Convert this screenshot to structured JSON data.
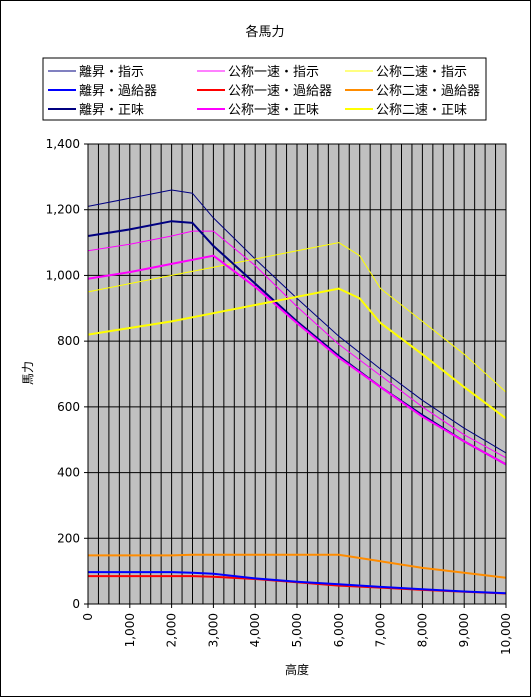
{
  "chart_data": {
    "type": "line",
    "title": "各馬力",
    "xlabel": "高度",
    "ylabel": "馬力",
    "xlim": [
      0,
      10000
    ],
    "ylim": [
      0,
      1400
    ],
    "x_ticks": [
      "0",
      "1,000",
      "2,000",
      "3,000",
      "4,000",
      "5,000",
      "6,000",
      "7,000",
      "8,000",
      "9,000",
      "10,000"
    ],
    "y_ticks": [
      "0",
      "200",
      "400",
      "600",
      "800",
      "1,000",
      "1,200",
      "1,400"
    ],
    "grid": true,
    "plot_background": "#c0c0c0",
    "legend_position": "top",
    "series": [
      {
        "name": "離昇・指示",
        "color": "#000080",
        "width": 1,
        "points": [
          [
            0,
            1210
          ],
          [
            1000,
            1235
          ],
          [
            2000,
            1260
          ],
          [
            2500,
            1250
          ],
          [
            3000,
            1175
          ],
          [
            4000,
            1050
          ],
          [
            5000,
            930
          ],
          [
            6000,
            815
          ],
          [
            7000,
            715
          ],
          [
            8000,
            620
          ],
          [
            9000,
            535
          ],
          [
            10000,
            460
          ]
        ]
      },
      {
        "name": "公称一速・指示",
        "color": "#ff00ff",
        "width": 1,
        "points": [
          [
            0,
            1075
          ],
          [
            1000,
            1095
          ],
          [
            2000,
            1120
          ],
          [
            2500,
            1135
          ],
          [
            3000,
            1135
          ],
          [
            4000,
            1030
          ],
          [
            5000,
            905
          ],
          [
            6000,
            790
          ],
          [
            7000,
            695
          ],
          [
            8000,
            600
          ],
          [
            9000,
            515
          ],
          [
            10000,
            445
          ]
        ]
      },
      {
        "name": "公称二速・指示",
        "color": "#ffff00",
        "width": 1,
        "points": [
          [
            0,
            950
          ],
          [
            1000,
            975
          ],
          [
            2000,
            1000
          ],
          [
            3000,
            1025
          ],
          [
            4000,
            1050
          ],
          [
            5000,
            1075
          ],
          [
            6000,
            1100
          ],
          [
            6500,
            1060
          ],
          [
            7000,
            960
          ],
          [
            8000,
            860
          ],
          [
            9000,
            760
          ],
          [
            10000,
            645
          ]
        ]
      },
      {
        "name": "離昇・過給器",
        "color": "#0000ff",
        "width": 2,
        "points": [
          [
            0,
            97
          ],
          [
            1000,
            97
          ],
          [
            2000,
            97
          ],
          [
            2500,
            95
          ],
          [
            3000,
            92
          ],
          [
            4000,
            78
          ],
          [
            5000,
            68
          ],
          [
            6000,
            60
          ],
          [
            7000,
            52
          ],
          [
            8000,
            45
          ],
          [
            9000,
            38
          ],
          [
            10000,
            33
          ]
        ]
      },
      {
        "name": "公称一速・過給器",
        "color": "#ff0000",
        "width": 2,
        "points": [
          [
            0,
            85
          ],
          [
            1000,
            85
          ],
          [
            2000,
            85
          ],
          [
            2500,
            85
          ],
          [
            3000,
            83
          ],
          [
            4000,
            76
          ],
          [
            5000,
            66
          ],
          [
            6000,
            56
          ],
          [
            7000,
            50
          ],
          [
            8000,
            43
          ],
          [
            9000,
            37
          ],
          [
            10000,
            32
          ]
        ]
      },
      {
        "name": "公称二速・過給器",
        "color": "#ff8c00",
        "width": 2,
        "points": [
          [
            0,
            148
          ],
          [
            1000,
            148
          ],
          [
            2000,
            148
          ],
          [
            2500,
            150
          ],
          [
            3000,
            150
          ],
          [
            4000,
            150
          ],
          [
            5000,
            150
          ],
          [
            6000,
            150
          ],
          [
            7000,
            130
          ],
          [
            8000,
            110
          ],
          [
            9000,
            95
          ],
          [
            10000,
            80
          ]
        ]
      },
      {
        "name": "離昇・正味",
        "color": "#000080",
        "width": 2,
        "points": [
          [
            0,
            1120
          ],
          [
            1000,
            1140
          ],
          [
            2000,
            1165
          ],
          [
            2500,
            1160
          ],
          [
            3000,
            1090
          ],
          [
            4000,
            975
          ],
          [
            5000,
            860
          ],
          [
            6000,
            755
          ],
          [
            7000,
            660
          ],
          [
            8000,
            575
          ],
          [
            9000,
            495
          ],
          [
            10000,
            425
          ]
        ]
      },
      {
        "name": "公称一速・正味",
        "color": "#ff00ff",
        "width": 2,
        "points": [
          [
            0,
            990
          ],
          [
            1000,
            1010
          ],
          [
            2000,
            1035
          ],
          [
            3000,
            1060
          ],
          [
            4000,
            965
          ],
          [
            5000,
            855
          ],
          [
            6000,
            750
          ],
          [
            7000,
            660
          ],
          [
            8000,
            570
          ],
          [
            9000,
            495
          ],
          [
            10000,
            425
          ]
        ]
      },
      {
        "name": "公称二速・正味",
        "color": "#ffff00",
        "width": 2,
        "points": [
          [
            0,
            820
          ],
          [
            1000,
            840
          ],
          [
            2000,
            860
          ],
          [
            3000,
            885
          ],
          [
            4000,
            910
          ],
          [
            5000,
            935
          ],
          [
            6000,
            960
          ],
          [
            6500,
            930
          ],
          [
            7000,
            855
          ],
          [
            8000,
            760
          ],
          [
            9000,
            660
          ],
          [
            10000,
            565
          ]
        ]
      }
    ]
  }
}
